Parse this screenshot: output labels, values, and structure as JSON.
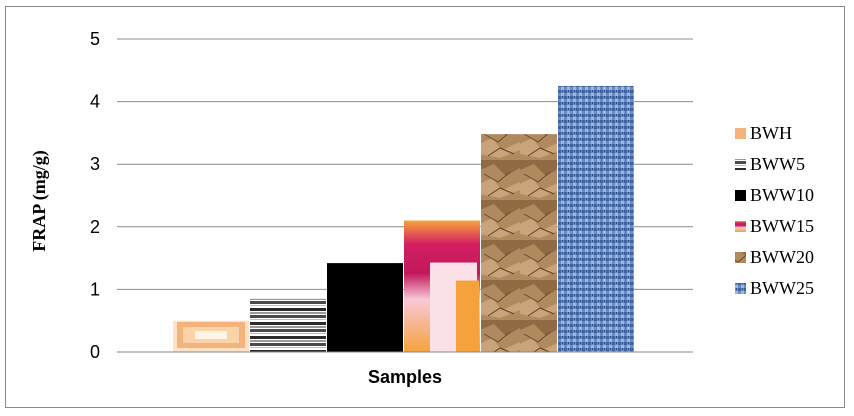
{
  "chart_data": {
    "type": "bar",
    "categories": [
      "Samples"
    ],
    "series": [
      {
        "name": "BWH",
        "values": [
          0.5
        ],
        "color": "#f4a460",
        "pattern": "nested-squares-peach"
      },
      {
        "name": "BWW5",
        "values": [
          0.85
        ],
        "color": "#808080",
        "pattern": "horizontal-stripes-gray"
      },
      {
        "name": "BWW10",
        "values": [
          1.42
        ],
        "color": "#000000",
        "pattern": "solid-black"
      },
      {
        "name": "BWW15",
        "values": [
          2.1
        ],
        "color": "#c2185b",
        "pattern": "nested-squares-magenta-orange"
      },
      {
        "name": "BWW20",
        "values": [
          3.48
        ],
        "color": "#a67c52",
        "pattern": "crumpled-paper"
      },
      {
        "name": "BWW25",
        "values": [
          4.25
        ],
        "color": "#5b7fb4",
        "pattern": "blue-texture"
      }
    ],
    "xlabel": "Samples",
    "ylabel": "FRAP (mg/g)",
    "ylim": [
      0,
      5
    ],
    "yticks": [
      "0",
      "1",
      "2",
      "3",
      "4",
      "5"
    ],
    "grid": true,
    "legend_position": "right"
  }
}
